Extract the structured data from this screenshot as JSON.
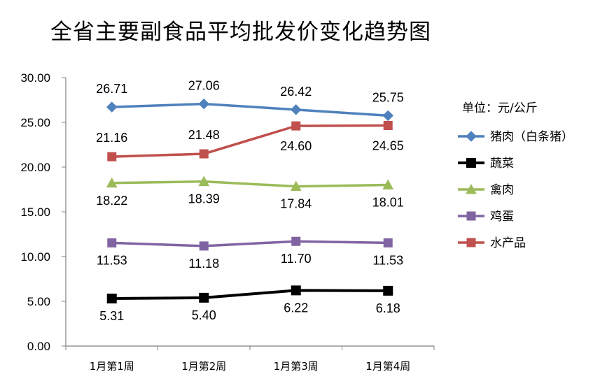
{
  "chart_data": {
    "type": "line",
    "title": "全省主要副食品平均批发价变化趋势图",
    "unit_label": "单位：元/公斤",
    "categories": [
      "1月第1周",
      "1月第2周",
      "1月第3周",
      "1月第4周"
    ],
    "ylim": [
      0,
      30
    ],
    "yticks": [
      "0.00",
      "5.00",
      "10.00",
      "15.00",
      "20.00",
      "25.00",
      "30.00"
    ],
    "grid": false,
    "legend_position": "right",
    "series": [
      {
        "name": "猪肉（白条猪）",
        "color": "#4F81BD",
        "marker": "diamond",
        "label_pos": "above",
        "values": [
          26.71,
          27.06,
          26.42,
          25.75
        ],
        "labels": [
          "26.71",
          "27.06",
          "26.42",
          "25.75"
        ]
      },
      {
        "name": "蔬菜",
        "color": "#000000",
        "marker": "square",
        "label_pos": "below",
        "values": [
          5.31,
          5.4,
          6.22,
          6.18
        ],
        "labels": [
          "5.31",
          "5.40",
          "6.22",
          "6.18"
        ]
      },
      {
        "name": "禽肉",
        "color": "#9BBB59",
        "marker": "triangle",
        "label_pos": "below",
        "values": [
          18.22,
          18.39,
          17.84,
          18.01
        ],
        "labels": [
          "18.22",
          "18.39",
          "17.84",
          "18.01"
        ]
      },
      {
        "name": "鸡蛋",
        "color": "#8064A2",
        "marker": "square",
        "label_pos": "below",
        "values": [
          11.53,
          11.18,
          11.7,
          11.53
        ],
        "labels": [
          "11.53",
          "11.18",
          "11.70",
          "11.53"
        ]
      },
      {
        "name": "水产品",
        "color": "#C0504D",
        "marker": "square",
        "label_pos": "mixed",
        "values": [
          21.16,
          21.48,
          24.6,
          24.65
        ],
        "labels": [
          "21.16",
          "21.48",
          "24.60",
          "24.65"
        ]
      }
    ]
  }
}
